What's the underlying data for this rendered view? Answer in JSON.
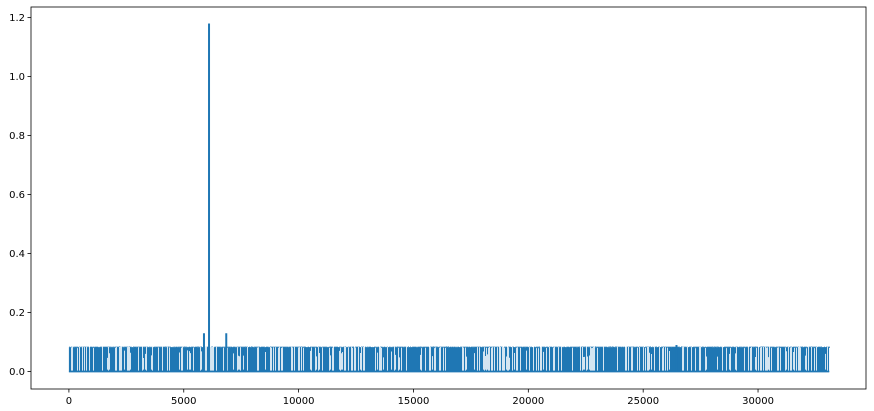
{
  "colors": {
    "line": "#1f77b4",
    "axes": "#000000",
    "background": "#ffffff"
  },
  "chart_data": {
    "type": "line",
    "title": "",
    "xlabel": "",
    "ylabel": "",
    "xlim": [
      -1650,
      34700
    ],
    "ylim": [
      -0.059,
      1.236
    ],
    "grid": false,
    "legend": "none",
    "x_ticks": [
      0,
      5000,
      10000,
      15000,
      20000,
      25000,
      30000
    ],
    "x_tick_labels": [
      "0",
      "5000",
      "10000",
      "15000",
      "20000",
      "25000",
      "30000"
    ],
    "y_ticks": [
      0.0,
      0.2,
      0.4,
      0.6,
      0.8,
      1.0,
      1.2
    ],
    "y_tick_labels": [
      "0.0",
      "0.2",
      "0.4",
      "0.6",
      "0.8",
      "1.0",
      "1.2"
    ],
    "series": [
      {
        "x_start": 0,
        "x_end": 33100,
        "baseline": 0.0,
        "typical_level": 0.083,
        "spikes": [
          {
            "x": 5880,
            "y": 0.13
          },
          {
            "x": 6100,
            "y": 1.18
          },
          {
            "x": 6850,
            "y": 0.13
          },
          {
            "x": 26450,
            "y": 0.09
          }
        ]
      }
    ]
  }
}
